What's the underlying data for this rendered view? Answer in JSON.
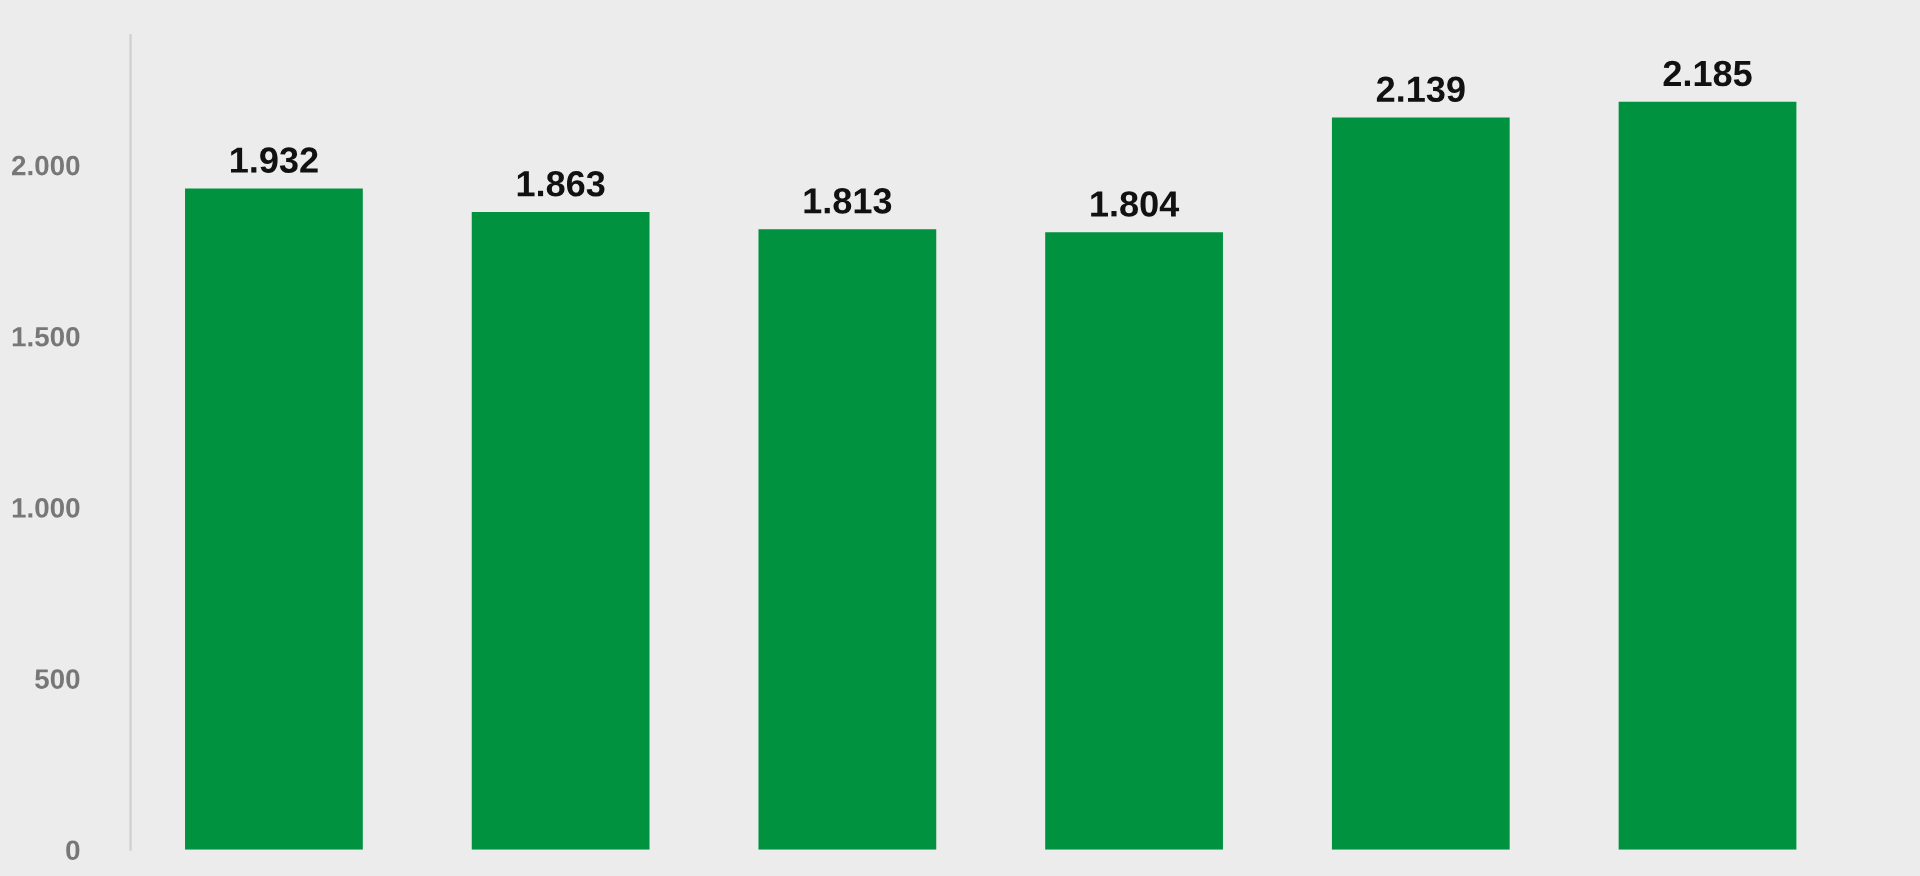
{
  "chart_data": {
    "type": "bar",
    "categories": [
      null,
      null,
      null,
      null,
      null,
      null
    ],
    "values": [
      1932,
      1863,
      1813,
      1804,
      2139,
      2185
    ],
    "value_labels": [
      "1.932",
      "1.863",
      "1.813",
      "1.804",
      "2.139",
      "2.185"
    ],
    "color": "#00923f",
    "ylim": [
      0,
      2380
    ],
    "yticks": [
      0,
      500,
      {
        "value": 1000,
        "label": "1.000"
      },
      {
        "value": 1500,
        "label": "1.500"
      },
      {
        "value": 2000,
        "label": "2.000"
      }
    ],
    "grid": false,
    "tick_labels": "y"
  }
}
